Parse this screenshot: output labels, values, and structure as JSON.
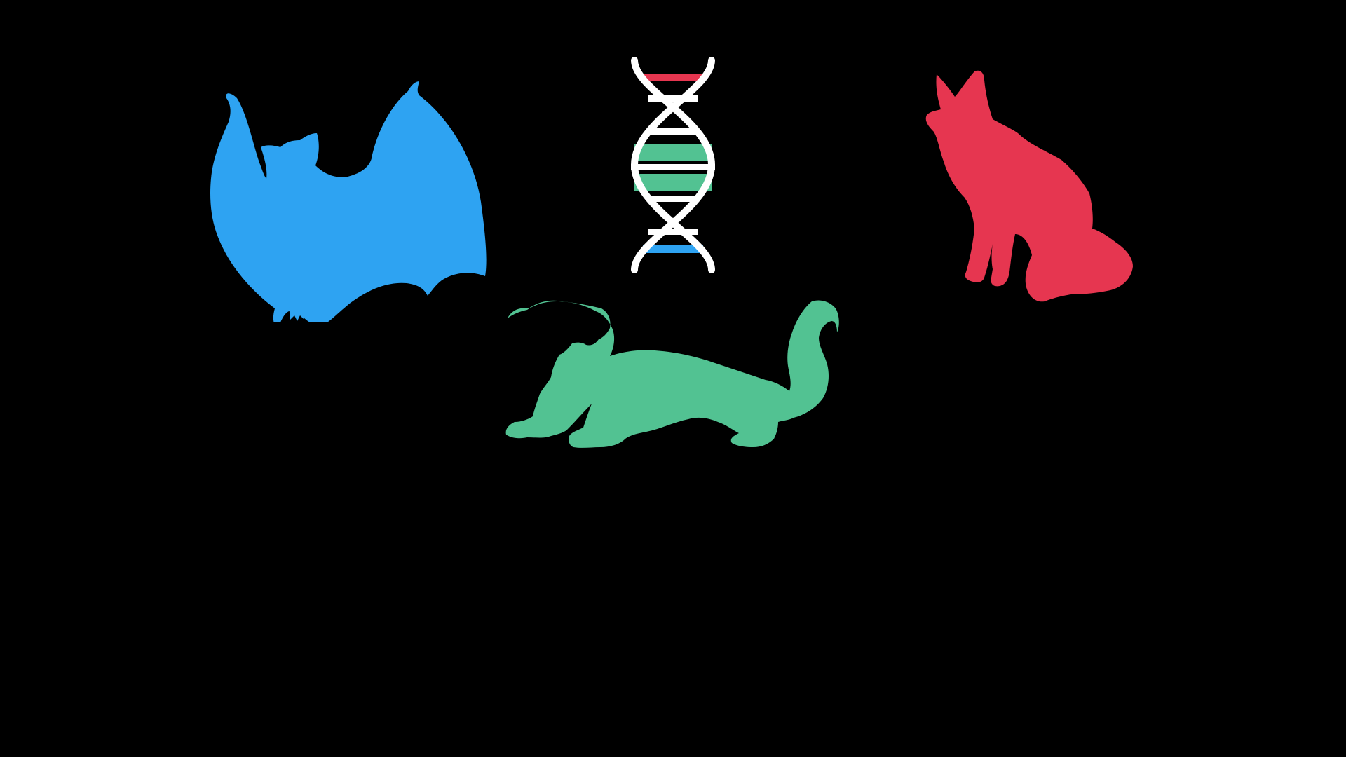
{
  "scene": {
    "background_color": "#000000",
    "figures": [
      {
        "id": "bat",
        "icon": "bat-silhouette-icon",
        "color": "#2ea3f2"
      },
      {
        "id": "dna",
        "icon": "dna-double-helix-icon",
        "color": "#ffffff",
        "rung_colors": [
          "#e63650",
          "#52c292",
          "#2ea3f2"
        ]
      },
      {
        "id": "fox",
        "icon": "fox-silhouette-icon",
        "color": "#e63650"
      },
      {
        "id": "ferret",
        "icon": "ferret-silhouette-icon",
        "color": "#52c292"
      }
    ]
  }
}
